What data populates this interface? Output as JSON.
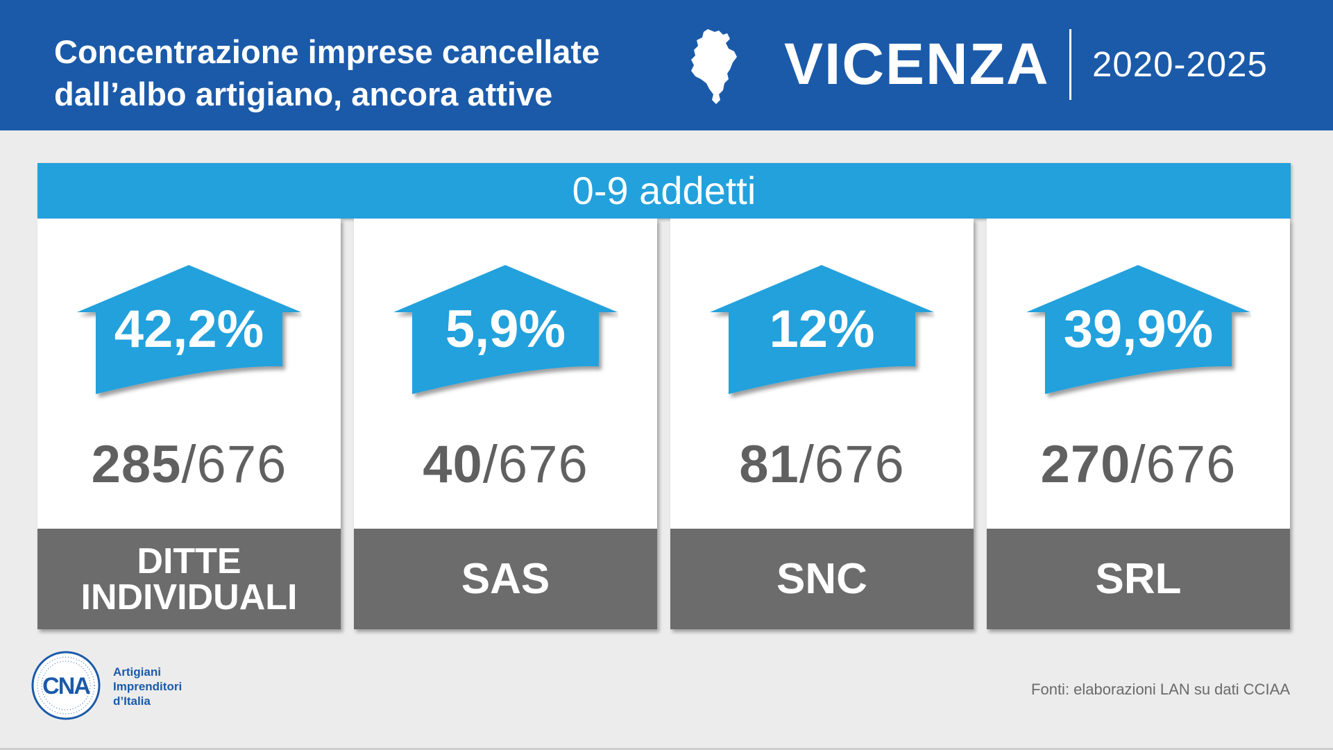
{
  "header": {
    "title_line1": "Concentrazione imprese cancellate",
    "title_line2": "dall’albo artigiano, ancora attive",
    "region": "VICENZA",
    "years": "2020-2025"
  },
  "band": {
    "label": "0-9 addetti"
  },
  "chart_data": {
    "type": "table",
    "title": "Concentrazione imprese cancellate dall’albo artigiano, ancora attive",
    "subtitle": "0-9 addetti",
    "categories": [
      "DITTE INDIVIDUALI",
      "SAS",
      "SNC",
      "SRL"
    ],
    "series": [
      {
        "values": [
          42.2,
          5.9,
          12,
          39.9
        ]
      },
      {
        "values": [
          285,
          40,
          81,
          270
        ]
      }
    ],
    "total": 676,
    "cards": [
      {
        "percent": "42,2%",
        "count": "285",
        "total": "/676",
        "label_line1": "DITTE",
        "label_line2": "INDIVIDUALI"
      },
      {
        "percent": "5,9%",
        "count": "40",
        "total": "/676",
        "label_line1": "SAS",
        "label_line2": ""
      },
      {
        "percent": "12%",
        "count": "81",
        "total": "/676",
        "label_line1": "SNC",
        "label_line2": ""
      },
      {
        "percent": "39,9%",
        "count": "270",
        "total": "/676",
        "label_line1": "SRL",
        "label_line2": ""
      }
    ]
  },
  "logo": {
    "mark": "CNA",
    "line1": "Artigiani",
    "line2": "Imprenditori",
    "line3": "d’Italia"
  },
  "source": "Fonti: elaborazioni LAN su dati CCIAA",
  "colors": {
    "header_blue": "#1b5aa9",
    "accent_cyan": "#23a1dc",
    "label_gray": "#6c6c6c",
    "text_gray": "#606060",
    "background": "#ececec"
  },
  "icons": {
    "region": "vicenza-province-map-icon",
    "card": "house-arrow-icon"
  }
}
